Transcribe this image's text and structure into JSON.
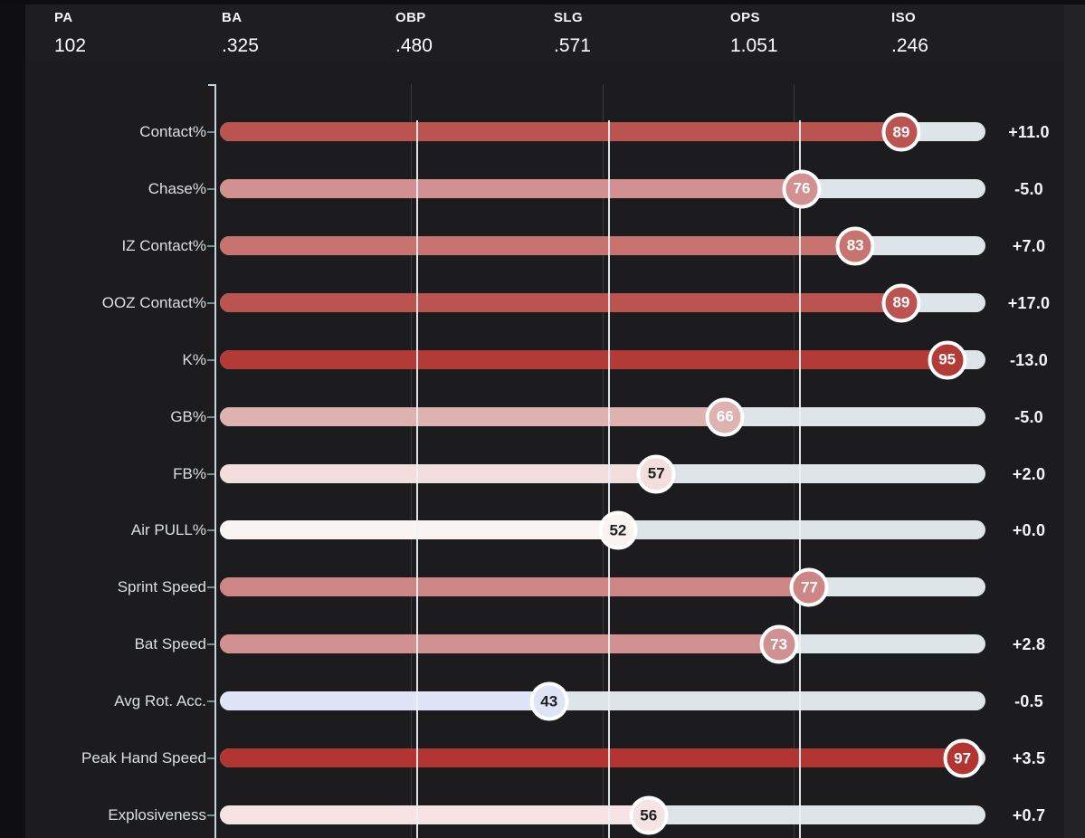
{
  "colors": {
    "page_bg": "#161618",
    "left_strip_bg": "#0f0f11",
    "right_strip_bg": "#232327",
    "card_bg": "#1c1c1e",
    "header_bg": "#1e1e20",
    "top_strip_bg": "#0e0e10",
    "track": "#dde5e9",
    "axis_line": "#c9d5d9",
    "row_tick": "#6f9094",
    "gridline": "#3a3a3c",
    "gridline_overlay": "#edf2f4",
    "label_text": "#dbdfe0",
    "header_label_text": "#f5f5f6",
    "header_value_text": "#ffffff",
    "delta_text": "#f3f5f6",
    "badge_ring": "#ffffff"
  },
  "header": {
    "stats": [
      {
        "label": "PA",
        "value": "102"
      },
      {
        "label": "BA",
        "value": ".325"
      },
      {
        "label": "OBP",
        "value": ".480"
      },
      {
        "label": "SLG",
        "value": ".571"
      },
      {
        "label": "OPS",
        "value": "1.051"
      },
      {
        "label": "ISO",
        "value": ".246"
      }
    ]
  },
  "chart_data": {
    "type": "bar",
    "orientation": "horizontal",
    "xlim": [
      0,
      100
    ],
    "gridlines_pct": [
      25,
      50,
      75
    ],
    "track_note": "percentile rank 0-100, colored fill to percentile, light track remainder",
    "rows": [
      {
        "label": "Contact%",
        "percentile": 89,
        "delta": "+11.0",
        "bar_color": "#bb5350",
        "value_text_color": "#ffffff"
      },
      {
        "label": "Chase%",
        "percentile": 76,
        "delta": "-5.0",
        "bar_color": "#d29090",
        "value_text_color": "#ffffff"
      },
      {
        "label": "IZ Contact%",
        "percentile": 83,
        "delta": "+7.0",
        "bar_color": "#c77471",
        "value_text_color": "#ffffff"
      },
      {
        "label": "OOZ Contact%",
        "percentile": 89,
        "delta": "+17.0",
        "bar_color": "#bb5350",
        "value_text_color": "#ffffff"
      },
      {
        "label": "K%",
        "percentile": 95,
        "delta": "-13.0",
        "bar_color": "#b23b37",
        "value_text_color": "#ffffff"
      },
      {
        "label": "GB%",
        "percentile": 66,
        "delta": "-5.0",
        "bar_color": "#ddb2b1",
        "value_text_color": "#ffffff"
      },
      {
        "label": "FB%",
        "percentile": 57,
        "delta": "+2.0",
        "bar_color": "#f2dedd",
        "value_text_color": "#202022"
      },
      {
        "label": "Air PULL%",
        "percentile": 52,
        "delta": "+0.0",
        "bar_color": "#f9f3f1",
        "value_text_color": "#202022"
      },
      {
        "label": "Sprint Speed",
        "percentile": 77,
        "delta": "",
        "bar_color": "#cd8585",
        "value_text_color": "#ffffff"
      },
      {
        "label": "Bat Speed",
        "percentile": 73,
        "delta": "+2.8",
        "bar_color": "#d19192",
        "value_text_color": "#ffffff"
      },
      {
        "label": "Avg Rot. Acc.",
        "percentile": 43,
        "delta": "-0.5",
        "bar_color": "#dfe4f7",
        "value_text_color": "#202022"
      },
      {
        "label": "Peak Hand Speed",
        "percentile": 97,
        "delta": "+3.5",
        "bar_color": "#b23531",
        "value_text_color": "#ffffff"
      },
      {
        "label": "Explosiveness",
        "percentile": 56,
        "delta": "+0.7",
        "bar_color": "#f6e4e4",
        "value_text_color": "#202022"
      }
    ]
  }
}
